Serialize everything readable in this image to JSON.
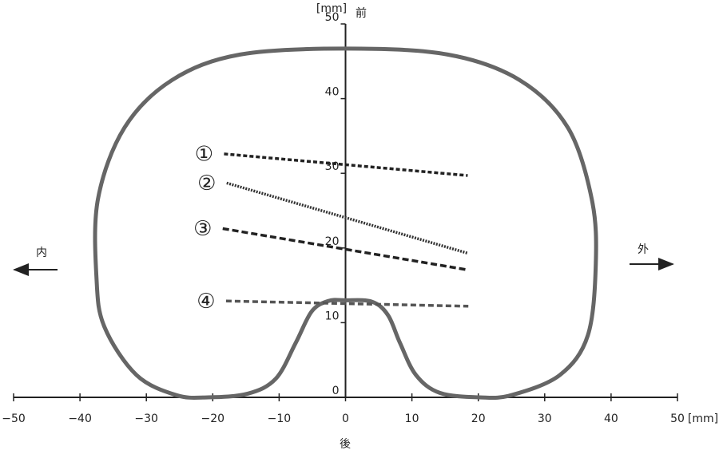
{
  "chart_data": {
    "type": "line",
    "x_unit": "[mm]",
    "y_unit": "[mm]",
    "front_label": "前",
    "back_label": "後",
    "inner_label": "内",
    "outer_label": "外",
    "xlim": [
      -50,
      50
    ],
    "xticks": [
      {
        "value": -50,
        "label": "−50"
      },
      {
        "value": -40,
        "label": "−40"
      },
      {
        "value": -30,
        "label": "−30"
      },
      {
        "value": -20,
        "label": "−20"
      },
      {
        "value": -10,
        "label": "−10"
      },
      0,
      10,
      20,
      30,
      40,
      50
    ],
    "ylim": [
      0,
      50
    ],
    "yticks": [
      0,
      10,
      20,
      30,
      40,
      50
    ],
    "outline": {
      "color": "#666666",
      "x": [
        0,
        15.4,
        26.2,
        33.5,
        37.1,
        37.7,
        36.5,
        32.3,
        25,
        20.2,
        14.2,
        10.6,
        8.2,
        6.4,
        4,
        0,
        -2.6,
        -5.1,
        -7.5,
        -10.5,
        -14.7,
        -20.7,
        -25.5,
        -31.5,
        -36.3,
        -37.5,
        -37.3,
        -33.3,
        -26.1,
        -15.9
      ],
      "y": [
        46.7,
        45.9,
        42.5,
        36.1,
        26.5,
        17.9,
        8.3,
        3.0,
        0.3,
        0,
        0.6,
        3.0,
        7.3,
        11.0,
        12.8,
        13.0,
        12.9,
        11.5,
        7.3,
        2.5,
        0.5,
        0,
        0.3,
        3.0,
        9.4,
        15.8,
        26.5,
        36.1,
        42.5,
        45.9
      ]
    },
    "series": [
      {
        "name": "①",
        "color": "#222222",
        "dash": "5,3",
        "x": [
          -18.3,
          18.4
        ],
        "values": [
          32.6,
          29.7
        ]
      },
      {
        "name": "②",
        "color": "#333333",
        "dash": "2,1.5",
        "x": [
          -17.9,
          18.4
        ],
        "values": [
          28.7,
          19.3
        ]
      },
      {
        "name": "③",
        "color": "#222222",
        "dash": "8,4",
        "x": [
          -18.5,
          18.2
        ],
        "values": [
          22.6,
          17.1
        ]
      },
      {
        "name": "④",
        "color": "#555555",
        "dash": "7,4",
        "x": [
          -18,
          18.5
        ],
        "values": [
          12.9,
          12.2
        ]
      }
    ]
  }
}
